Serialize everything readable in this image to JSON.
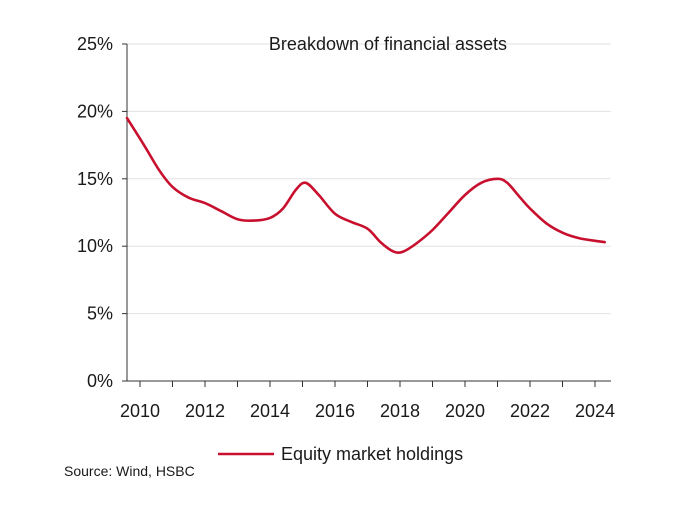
{
  "chart_data": {
    "type": "line",
    "title": "Breakdown of financial assets",
    "xlabel": "",
    "ylabel": "",
    "xlim": [
      2010,
      2024
    ],
    "ylim": [
      0,
      25
    ],
    "x_ticks": [
      "2010",
      "2012",
      "2014",
      "2016",
      "2018",
      "2020",
      "2022",
      "2024"
    ],
    "y_ticks": [
      "0%",
      "5%",
      "10%",
      "15%",
      "20%",
      "25%"
    ],
    "grid": "horizontal",
    "legend": "bottom",
    "series": [
      {
        "name": "Equity market holdings",
        "color": "#c8102e",
        "x": [
          2009.6,
          2010.1,
          2010.6,
          2011.0,
          2011.5,
          2012.0,
          2012.5,
          2013.0,
          2013.5,
          2014.0,
          2014.4,
          2014.8,
          2015.1,
          2015.5,
          2016.0,
          2016.5,
          2017.0,
          2017.4,
          2017.8,
          2018.1,
          2018.5,
          2019.0,
          2019.5,
          2020.0,
          2020.5,
          2021.0,
          2021.3,
          2021.7,
          2022.0,
          2022.5,
          2023.0,
          2023.5,
          2024.0,
          2024.3
        ],
        "y": [
          19.5,
          17.6,
          15.6,
          14.4,
          13.6,
          13.2,
          12.6,
          12.0,
          11.9,
          12.1,
          12.8,
          14.2,
          14.7,
          13.8,
          12.4,
          11.8,
          11.3,
          10.3,
          9.6,
          9.6,
          10.2,
          11.2,
          12.5,
          13.8,
          14.7,
          15.0,
          14.7,
          13.6,
          12.8,
          11.7,
          11.0,
          10.6,
          10.4,
          10.3
        ]
      }
    ],
    "source": "Source: Wind, HSBC"
  }
}
